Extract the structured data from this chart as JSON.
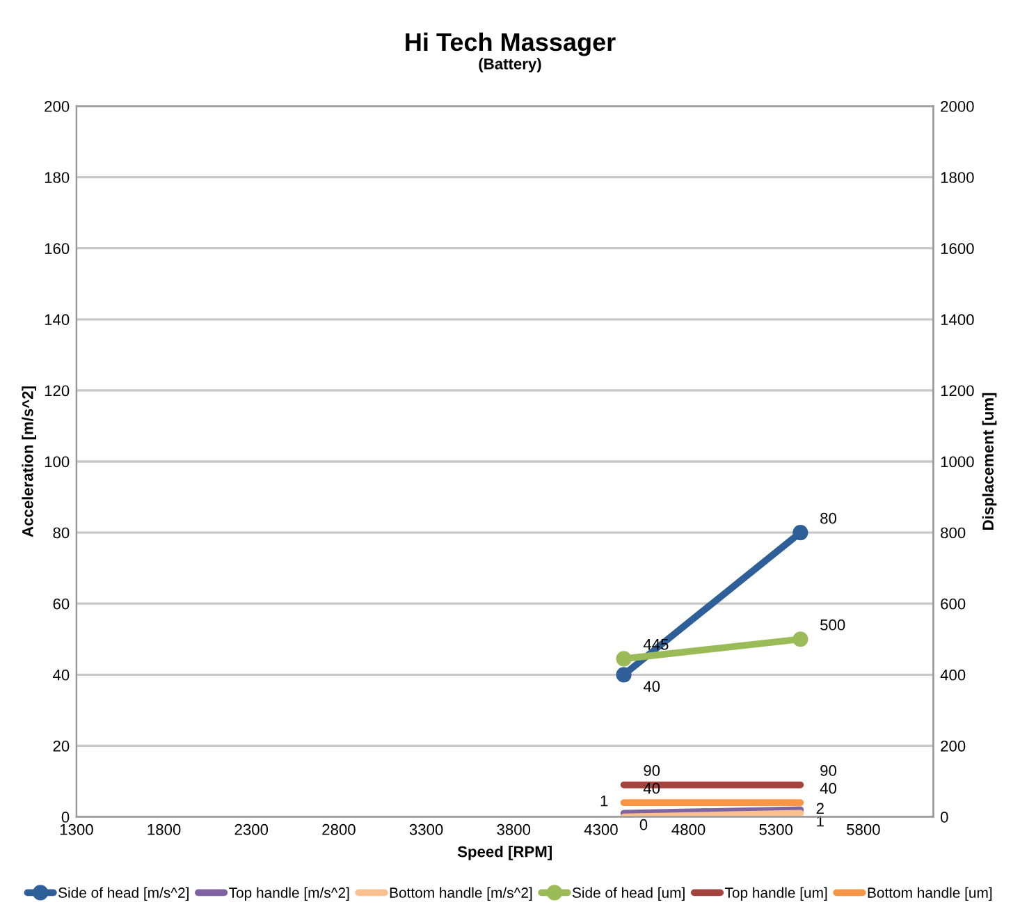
{
  "chart_data": {
    "type": "line",
    "title": "Hi Tech Massager",
    "subtitle": "(Battery)",
    "xlabel": "Speed [RPM]",
    "ylabel": "Acceleration [m/s^2]",
    "y2label": "Displacement [um]",
    "x": [
      4430,
      5440
    ],
    "series": [
      {
        "name": "Side of head [m/s^2]",
        "color": "#2f5f98",
        "values": [
          40,
          80
        ],
        "marker": "circle"
      },
      {
        "name": "Top handle [m/s^2]",
        "color": "#8064a2",
        "values": [
          1,
          2
        ],
        "marker": "none"
      },
      {
        "name": "Bottom handle [m/s^2]",
        "color": "#fac090",
        "values": [
          0,
          1
        ],
        "marker": "none"
      },
      {
        "name": "Side of head [um]",
        "color": "#9bbb59",
        "values": [
          445,
          500
        ],
        "marker": "circle",
        "axis": "y2"
      },
      {
        "name": "Top handle [um]",
        "color": "#a5443f",
        "values": [
          90,
          90
        ],
        "marker": "none",
        "axis": "y2"
      },
      {
        "name": "Bottom handle [um]",
        "color": "#f79646",
        "values": [
          40,
          40
        ],
        "marker": "none",
        "axis": "y2"
      }
    ],
    "xlim": [
      1300,
      6200
    ],
    "xticks": [
      1300,
      1800,
      2300,
      2800,
      3300,
      3800,
      4300,
      4800,
      5300,
      5800
    ],
    "ylim": [
      0,
      200
    ],
    "yticks": [
      0,
      20,
      40,
      60,
      80,
      100,
      120,
      140,
      160,
      180,
      200
    ],
    "y2lim": [
      0,
      2000
    ],
    "y2ticks": [
      0,
      200,
      400,
      600,
      800,
      1000,
      1200,
      1400,
      1600,
      1800,
      2000
    ],
    "grid": "y",
    "legend": "bottom",
    "data_labels": true,
    "line_style": "solid"
  }
}
